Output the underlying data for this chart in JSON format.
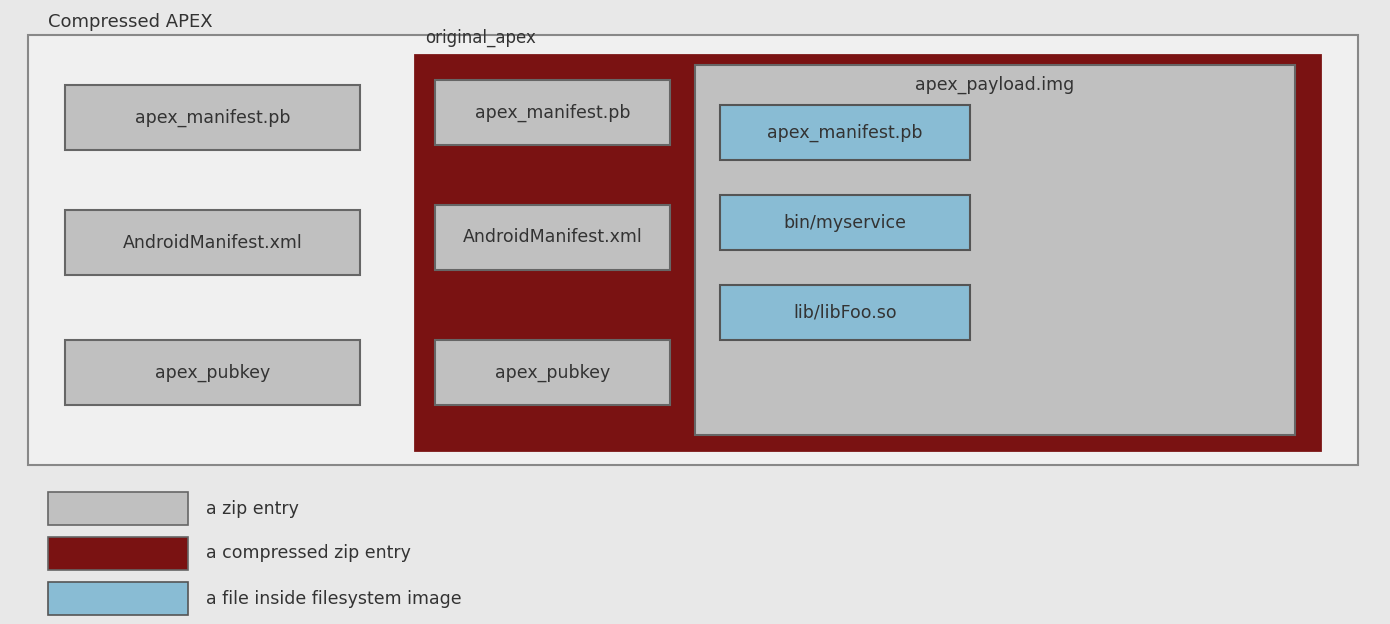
{
  "title": "Compressed APEX",
  "bg_color": "#e8e8e8",
  "outer_box_facecolor": "#f0f0f0",
  "outer_box_edge": "#888888",
  "dark_red": "#7a1212",
  "gray_box": "#c0c0c0",
  "gray_box_edge": "#666666",
  "blue_box": "#89bcd4",
  "blue_box_edge": "#555555",
  "original_apex_label": "original_apex",
  "apex_payload_label": "apex_payload.img",
  "left_items": [
    "apex_manifest.pb",
    "AndroidManifest.xml",
    "apex_pubkey"
  ],
  "middle_items": [
    "apex_manifest.pb",
    "AndroidManifest.xml",
    "apex_pubkey"
  ],
  "right_items": [
    "apex_manifest.pb",
    "bin/myservice",
    "lib/libFoo.so"
  ],
  "legend": [
    {
      "label": "a zip entry",
      "color": "#c0c0c0",
      "edge": "#666666"
    },
    {
      "label": "a compressed zip entry",
      "color": "#7a1212",
      "edge": "#666666"
    },
    {
      "label": "a file inside filesystem image",
      "color": "#89bcd4",
      "edge": "#555555"
    }
  ],
  "fig_w": 13.9,
  "fig_h": 6.24,
  "dpi": 100
}
